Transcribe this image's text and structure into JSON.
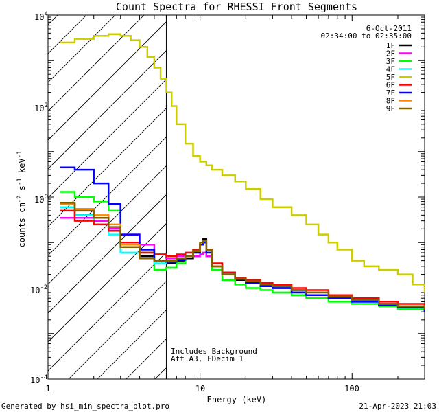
{
  "chart_data": {
    "type": "line",
    "title": "Count Spectra for RHESSI Front Segments",
    "xlabel": "Energy (keV)",
    "ylabel_main": "counts cm",
    "ylabel_sup1": "-2",
    "ylabel_mid1": " s",
    "ylabel_sup2": "-1",
    "ylabel_mid2": " keV",
    "ylabel_sup3": "-1",
    "x_scale": "log",
    "y_scale": "log",
    "xlim": [
      1,
      300
    ],
    "ylim": [
      0.0001,
      10000
    ],
    "x_ticks": [
      {
        "value": 1,
        "label": "1"
      },
      {
        "value": 10,
        "label": "10"
      },
      {
        "value": 100,
        "label": "100"
      }
    ],
    "y_ticks": [
      {
        "value": 10000,
        "base": "10",
        "exp": "4"
      },
      {
        "value": 100,
        "base": "10",
        "exp": "2"
      },
      {
        "value": 1,
        "base": "10",
        "exp": "0"
      },
      {
        "value": 0.01,
        "base": "10",
        "exp": "-2"
      },
      {
        "value": 0.0001,
        "base": "10",
        "exp": "-4"
      }
    ],
    "hatched_region_upper_energy": 6,
    "date": "6-Oct-2011",
    "time_range": "02:34:00 to 02:35:00",
    "annotations": [
      "Includes Background",
      "Att A3, FDecim  1"
    ],
    "series": [
      {
        "name": "1F",
        "color": "#000000",
        "x": [
          1.2,
          1.5,
          2,
          2.5,
          3,
          4,
          5,
          6,
          7,
          8,
          9,
          10,
          10.5,
          11,
          12,
          14,
          17,
          20,
          25,
          30,
          40,
          50,
          70,
          100,
          150,
          200,
          300
        ],
        "values": [
          0.7,
          0.4,
          0.3,
          0.2,
          0.1,
          0.05,
          0.04,
          0.035,
          0.04,
          0.045,
          0.06,
          0.09,
          0.12,
          0.07,
          0.03,
          0.02,
          0.015,
          0.013,
          0.011,
          0.01,
          0.008,
          0.007,
          0.006,
          0.005,
          0.0045,
          0.004,
          0.003
        ]
      },
      {
        "name": "2F",
        "color": "#ff00ff",
        "x": [
          1.2,
          1.5,
          2,
          2.5,
          3,
          4,
          5,
          6,
          7,
          8,
          9,
          10,
          10.5,
          11,
          12,
          14,
          17,
          20,
          25,
          30,
          40,
          50,
          70,
          100,
          150,
          200,
          300
        ],
        "values": [
          0.35,
          0.35,
          0.3,
          0.2,
          0.15,
          0.09,
          0.055,
          0.045,
          0.05,
          0.05,
          0.05,
          0.055,
          0.06,
          0.05,
          0.03,
          0.02,
          0.016,
          0.014,
          0.012,
          0.011,
          0.009,
          0.008,
          0.007,
          0.0055,
          0.0045,
          0.004,
          0.0032
        ]
      },
      {
        "name": "3F",
        "color": "#00ff00",
        "x": [
          1.2,
          1.5,
          2,
          2.5,
          3,
          4,
          5,
          6,
          7,
          8,
          9,
          10,
          10.5,
          11,
          12,
          14,
          17,
          20,
          25,
          30,
          40,
          50,
          70,
          100,
          150,
          200,
          300
        ],
        "values": [
          1.3,
          1.0,
          0.8,
          0.5,
          0.1,
          0.06,
          0.025,
          0.028,
          0.035,
          0.05,
          0.06,
          0.09,
          0.1,
          0.06,
          0.025,
          0.015,
          0.012,
          0.01,
          0.009,
          0.008,
          0.007,
          0.006,
          0.005,
          0.0045,
          0.004,
          0.0035,
          0.003
        ]
      },
      {
        "name": "4F",
        "color": "#00ffff",
        "x": [
          1.2,
          1.5,
          2,
          2.5,
          3,
          4,
          5,
          6,
          7,
          8,
          9,
          10,
          10.5,
          11,
          12,
          14,
          17,
          20,
          25,
          30,
          40,
          50,
          70,
          100,
          150,
          200,
          300
        ],
        "values": [
          0.6,
          0.4,
          0.25,
          0.15,
          0.06,
          0.045,
          0.035,
          0.038,
          0.045,
          0.05,
          0.07,
          0.1,
          0.11,
          0.07,
          0.03,
          0.02,
          0.016,
          0.014,
          0.012,
          0.011,
          0.009,
          0.008,
          0.006,
          0.005,
          0.0045,
          0.004,
          0.0032
        ]
      },
      {
        "name": "5F",
        "color": "#cccc00",
        "x": [
          1.2,
          1.5,
          2,
          2.5,
          3,
          3.5,
          4,
          4.5,
          5,
          5.5,
          6,
          6.5,
          7,
          8,
          9,
          10,
          11,
          12,
          14,
          17,
          20,
          25,
          30,
          40,
          50,
          60,
          70,
          80,
          100,
          120,
          150,
          200,
          250,
          300
        ],
        "values": [
          2500,
          3000,
          3500,
          3800,
          3500,
          2800,
          2000,
          1200,
          700,
          400,
          200,
          100,
          40,
          15,
          8,
          6,
          5,
          4,
          3,
          2.2,
          1.5,
          0.9,
          0.6,
          0.4,
          0.25,
          0.15,
          0.1,
          0.07,
          0.04,
          0.03,
          0.025,
          0.02,
          0.012,
          0.008
        ]
      },
      {
        "name": "6F",
        "color": "#ff0000",
        "x": [
          1.2,
          1.5,
          2,
          2.5,
          3,
          4,
          5,
          6,
          7,
          8,
          9,
          10,
          10.5,
          11,
          12,
          14,
          17,
          20,
          25,
          30,
          40,
          50,
          70,
          100,
          150,
          200,
          300
        ],
        "values": [
          0.5,
          0.3,
          0.25,
          0.18,
          0.1,
          0.06,
          0.055,
          0.05,
          0.055,
          0.06,
          0.07,
          0.09,
          0.1,
          0.07,
          0.035,
          0.022,
          0.017,
          0.015,
          0.013,
          0.012,
          0.01,
          0.009,
          0.007,
          0.006,
          0.005,
          0.0045,
          0.0035
        ]
      },
      {
        "name": "7F",
        "color": "#0000ff",
        "x": [
          1.2,
          1.5,
          2,
          2.5,
          3,
          4,
          5,
          6,
          7,
          8,
          9,
          10,
          10.5,
          11,
          12,
          14,
          17,
          20,
          25,
          30,
          40,
          50,
          70,
          100,
          150,
          200,
          300
        ],
        "values": [
          4.5,
          4.0,
          2.0,
          0.7,
          0.15,
          0.07,
          0.04,
          0.038,
          0.042,
          0.05,
          0.06,
          0.09,
          0.1,
          0.06,
          0.03,
          0.02,
          0.016,
          0.013,
          0.011,
          0.01,
          0.008,
          0.007,
          0.006,
          0.005,
          0.0042,
          0.0038,
          0.003
        ]
      },
      {
        "name": "8F",
        "color": "#ff8800",
        "x": [
          1.2,
          1.5,
          2,
          2.5,
          3,
          4,
          5,
          6,
          7,
          8,
          9,
          10,
          10.5,
          11,
          12,
          14,
          17,
          20,
          25,
          30,
          40,
          50,
          70,
          100,
          150,
          200,
          300
        ],
        "values": [
          0.7,
          0.55,
          0.4,
          0.25,
          0.09,
          0.045,
          0.04,
          0.04,
          0.045,
          0.05,
          0.065,
          0.1,
          0.11,
          0.07,
          0.03,
          0.02,
          0.016,
          0.014,
          0.012,
          0.011,
          0.009,
          0.008,
          0.0065,
          0.0055,
          0.0045,
          0.004,
          0.0033
        ]
      },
      {
        "name": "9F",
        "color": "#806000",
        "x": [
          1.2,
          1.5,
          2,
          2.5,
          3,
          4,
          5,
          6,
          7,
          8,
          9,
          10,
          10.5,
          11,
          12,
          14,
          17,
          20,
          25,
          30,
          40,
          50,
          70,
          100,
          150,
          200,
          300
        ],
        "values": [
          0.75,
          0.5,
          0.35,
          0.22,
          0.08,
          0.045,
          0.04,
          0.04,
          0.045,
          0.05,
          0.065,
          0.1,
          0.11,
          0.07,
          0.03,
          0.02,
          0.016,
          0.014,
          0.012,
          0.011,
          0.009,
          0.008,
          0.0065,
          0.0055,
          0.0045,
          0.004,
          0.0033
        ]
      }
    ]
  },
  "footer": {
    "left": "Generated by hsi_min_spectra_plot.pro",
    "right": "21-Apr-2023 21:03"
  }
}
